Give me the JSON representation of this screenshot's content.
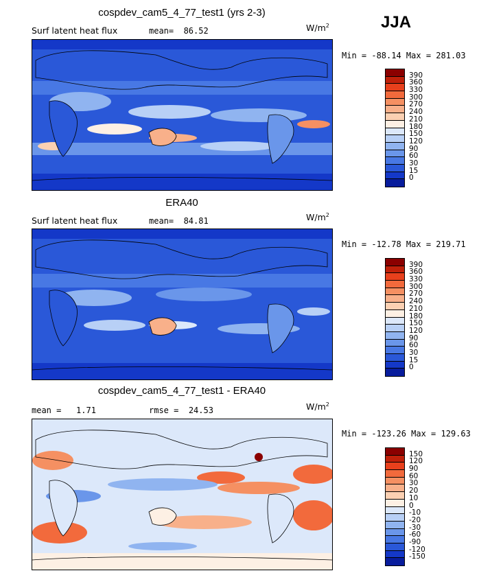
{
  "header": {
    "season": "JJA"
  },
  "panels": [
    {
      "title": "cospdev_cam5_4_77_test1 (yrs 2-3)",
      "variable": "Surf latent heat flux",
      "stat1_label": "mean=",
      "stat1_value": "86.52",
      "stat2_label": "",
      "stat2_value": "",
      "units_base": "W/m",
      "units_exp": "2",
      "minmax": "Min = -88.14 Max = 281.03",
      "colorbar": {
        "labels": [
          "390",
          "360",
          "330",
          "300",
          "270",
          "240",
          "210",
          "180",
          "150",
          "120",
          "90",
          "60",
          "30",
          "15",
          "0"
        ],
        "colors": [
          "#8b0000",
          "#c0200a",
          "#e8401c",
          "#f26a3c",
          "#f59062",
          "#f8b08a",
          "#fbd0b2",
          "#fdf0e4",
          "#dce8fa",
          "#b8d0f6",
          "#90b4f0",
          "#6a96ea",
          "#4878e4",
          "#2a58d8",
          "#1438c8",
          "#081c9c"
        ]
      }
    },
    {
      "title": "ERA40",
      "variable": "Surf latent heat flux",
      "stat1_label": "mean=",
      "stat1_value": "84.81",
      "stat2_label": "",
      "stat2_value": "",
      "units_base": "W/m",
      "units_exp": "2",
      "minmax": "Min = -12.78 Max = 219.71",
      "colorbar": {
        "labels": [
          "390",
          "360",
          "330",
          "300",
          "270",
          "240",
          "210",
          "180",
          "150",
          "120",
          "90",
          "60",
          "30",
          "15",
          "0"
        ],
        "colors": [
          "#8b0000",
          "#c0200a",
          "#e8401c",
          "#f26a3c",
          "#f59062",
          "#f8b08a",
          "#fbd0b2",
          "#fdf0e4",
          "#dce8fa",
          "#b8d0f6",
          "#90b4f0",
          "#6a96ea",
          "#4878e4",
          "#2a58d8",
          "#1438c8",
          "#081c9c"
        ]
      }
    },
    {
      "title": "cospdev_cam5_4_77_test1 - ERA40",
      "variable": "",
      "stat1_label": "mean =",
      "stat1_value": "1.71",
      "stat2_label": "rmse =",
      "stat2_value": "24.53",
      "units_base": "W/m",
      "units_exp": "2",
      "minmax": "Min = -123.26 Max = 129.63",
      "colorbar": {
        "labels": [
          "150",
          "120",
          "90",
          "60",
          "30",
          "20",
          "10",
          "0",
          "-10",
          "-20",
          "-30",
          "-60",
          "-90",
          "-120",
          "-150"
        ],
        "colors": [
          "#8b0000",
          "#c0200a",
          "#e8401c",
          "#f26a3c",
          "#f59062",
          "#f8b08a",
          "#fbd0b2",
          "#fdf0e4",
          "#dce8fa",
          "#b8d0f6",
          "#90b4f0",
          "#6a96ea",
          "#4878e4",
          "#2a58d8",
          "#1438c8",
          "#081c9c"
        ]
      }
    }
  ],
  "chart_data": [
    {
      "type": "heatmap",
      "title": "cospdev_cam5_4_77_test1 (yrs 2-3)",
      "field": "Surf latent heat flux",
      "units": "W/m2",
      "mean": 86.52,
      "min": -88.14,
      "max": 281.03,
      "levels": [
        0,
        15,
        30,
        60,
        90,
        120,
        150,
        180,
        210,
        240,
        270,
        300,
        330,
        360,
        390
      ]
    },
    {
      "type": "heatmap",
      "title": "ERA40",
      "field": "Surf latent heat flux",
      "units": "W/m2",
      "mean": 84.81,
      "min": -12.78,
      "max": 219.71,
      "levels": [
        0,
        15,
        30,
        60,
        90,
        120,
        150,
        180,
        210,
        240,
        270,
        300,
        330,
        360,
        390
      ]
    },
    {
      "type": "heatmap",
      "title": "cospdev_cam5_4_77_test1 - ERA40",
      "units": "W/m2",
      "mean": 1.71,
      "rmse": 24.53,
      "min": -123.26,
      "max": 129.63,
      "levels": [
        -150,
        -120,
        -90,
        -60,
        -30,
        -20,
        -10,
        0,
        10,
        20,
        30,
        60,
        90,
        120,
        150
      ]
    }
  ]
}
